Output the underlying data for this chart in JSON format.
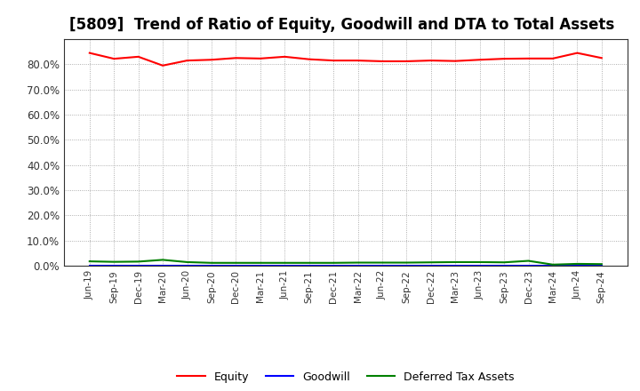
{
  "title": "[5809]  Trend of Ratio of Equity, Goodwill and DTA to Total Assets",
  "x_labels": [
    "Jun-19",
    "Sep-19",
    "Dec-19",
    "Mar-20",
    "Jun-20",
    "Sep-20",
    "Dec-20",
    "Mar-21",
    "Jun-21",
    "Sep-21",
    "Dec-21",
    "Mar-22",
    "Jun-22",
    "Sep-22",
    "Dec-22",
    "Mar-23",
    "Jun-23",
    "Sep-23",
    "Dec-23",
    "Mar-24",
    "Jun-24",
    "Sep-24"
  ],
  "equity": [
    84.5,
    82.2,
    83.0,
    79.5,
    81.5,
    81.8,
    82.5,
    82.3,
    83.0,
    82.0,
    81.5,
    81.5,
    81.2,
    81.2,
    81.5,
    81.3,
    81.8,
    82.2,
    82.3,
    82.3,
    84.5,
    82.5
  ],
  "goodwill": [
    0.0,
    0.0,
    0.0,
    0.0,
    0.0,
    0.0,
    0.0,
    0.0,
    0.0,
    0.0,
    0.0,
    0.0,
    0.0,
    0.0,
    0.0,
    0.0,
    0.0,
    0.0,
    0.0,
    0.0,
    0.0,
    0.0
  ],
  "dta": [
    1.8,
    1.6,
    1.7,
    2.4,
    1.5,
    1.2,
    1.2,
    1.2,
    1.2,
    1.2,
    1.2,
    1.3,
    1.3,
    1.3,
    1.4,
    1.5,
    1.5,
    1.4,
    2.0,
    0.5,
    0.8,
    0.7
  ],
  "equity_color": "#FF0000",
  "goodwill_color": "#0000FF",
  "dta_color": "#008000",
  "ylim": [
    0,
    90
  ],
  "yticks": [
    0,
    10,
    20,
    30,
    40,
    50,
    60,
    70,
    80
  ],
  "background_color": "#FFFFFF",
  "grid_color": "#999999",
  "title_fontsize": 12
}
